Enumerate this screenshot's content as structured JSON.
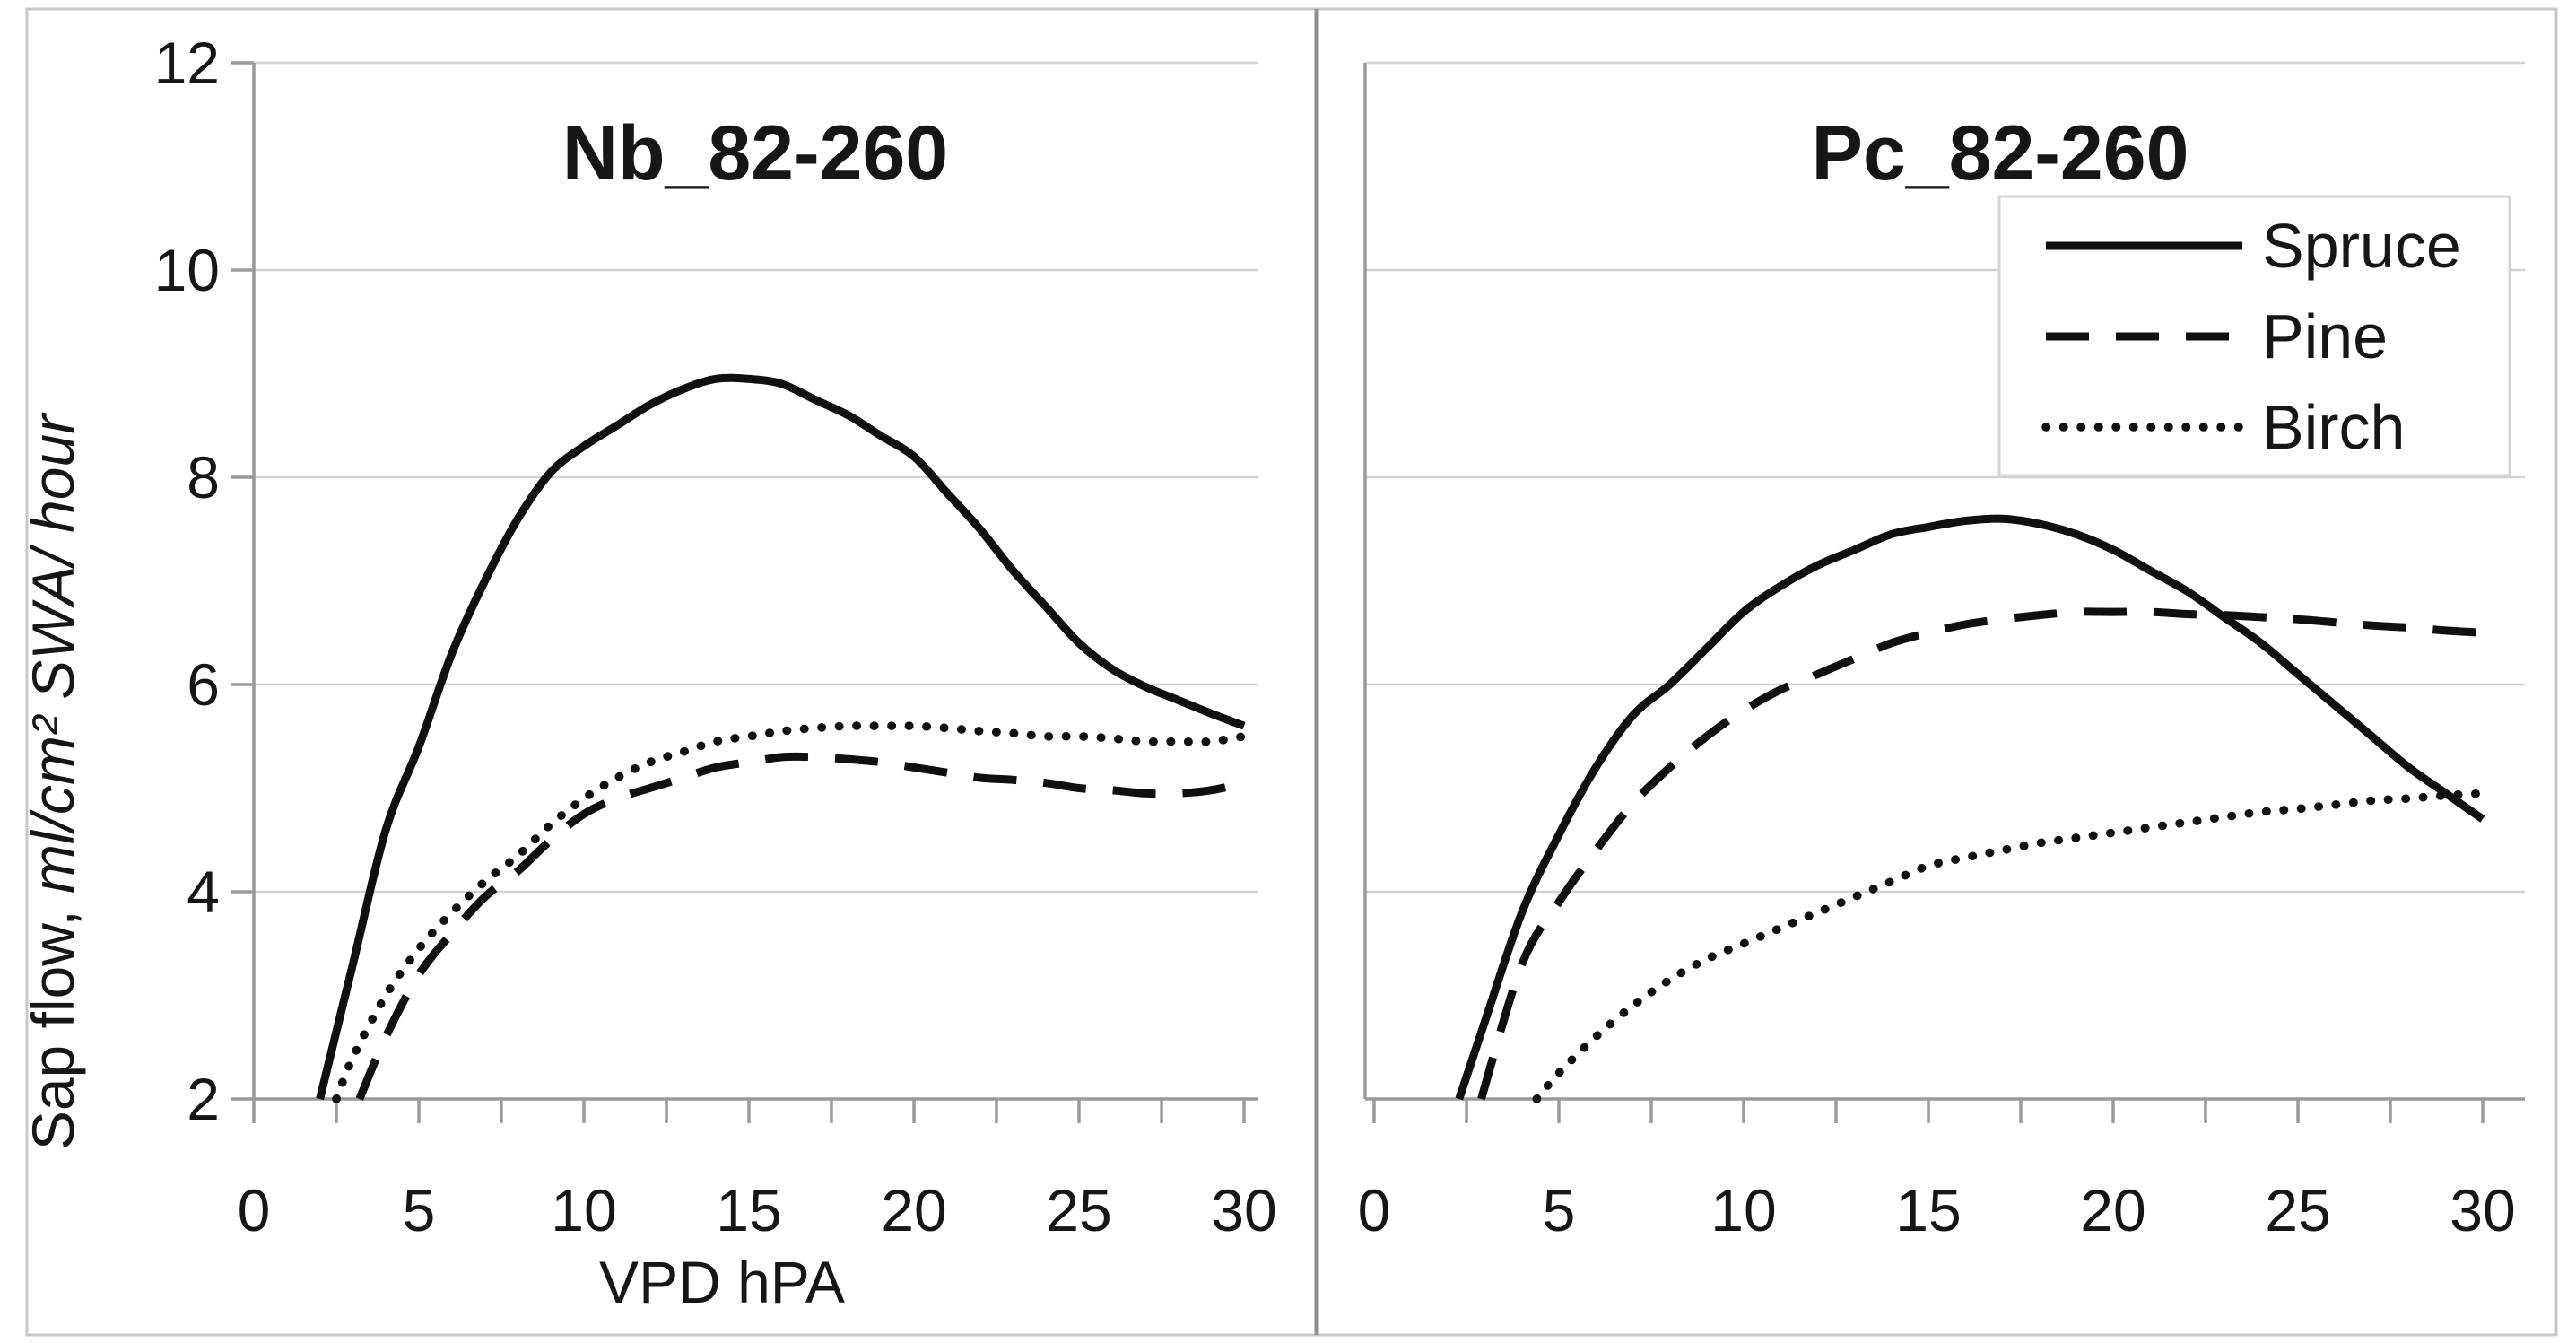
{
  "figure": {
    "border_note": "two-panel line chart figure with outer gray border and center divider"
  },
  "axes": {
    "x_title": "VPD hPA",
    "y_title_normal": "Sap flow, ",
    "y_title_italic": "ml/cm² SWA/ hour"
  },
  "colors": {
    "curve": "#101010",
    "grid": "#d2d2d2",
    "axis": "#9a9a9a",
    "divider": "#8f8f8f",
    "outer_border": "#c8c8c8",
    "legend_border": "#d4d4d4",
    "text": "#161616",
    "background": "#ffffff"
  },
  "chart_data": [
    {
      "type": "line",
      "title": "Nb_82-260",
      "xlabel": "VPD hPA",
      "ylabel": "Sap flow, ml/cm² SWA/ hour",
      "xlim": [
        0,
        30
      ],
      "ylim": [
        2,
        12
      ],
      "xticks": [
        0,
        5,
        10,
        15,
        20,
        25,
        30
      ],
      "xtick_minor_step": 2.5,
      "yticks": [
        12,
        10,
        8,
        6,
        4,
        2
      ],
      "ytick_labels": true,
      "grid": true,
      "series": [
        {
          "name": "Spruce",
          "style": "solid",
          "x": [
            2,
            3,
            4,
            5,
            6,
            7,
            8,
            9,
            10,
            11,
            12,
            13,
            14,
            15,
            16,
            17,
            18,
            19,
            20,
            21,
            22,
            23,
            24,
            25,
            26,
            27,
            28,
            29,
            30
          ],
          "y": [
            2.0,
            3.3,
            4.6,
            5.4,
            6.3,
            7.0,
            7.6,
            8.05,
            8.3,
            8.5,
            8.7,
            8.85,
            8.95,
            8.95,
            8.9,
            8.75,
            8.6,
            8.4,
            8.2,
            7.85,
            7.5,
            7.1,
            6.75,
            6.4,
            6.15,
            5.98,
            5.85,
            5.72,
            5.6
          ]
        },
        {
          "name": "Pine",
          "style": "dashed",
          "x": [
            3.2,
            4,
            5,
            6,
            7,
            8,
            9,
            10,
            11,
            12,
            13,
            14,
            15,
            16,
            17,
            18,
            19,
            20,
            21,
            22,
            23,
            24,
            25,
            26,
            27,
            28,
            29,
            30
          ],
          "y": [
            2.0,
            2.6,
            3.2,
            3.6,
            3.95,
            4.2,
            4.5,
            4.75,
            4.9,
            5.0,
            5.1,
            5.2,
            5.25,
            5.3,
            5.3,
            5.28,
            5.25,
            5.2,
            5.15,
            5.1,
            5.08,
            5.05,
            5.0,
            4.98,
            4.95,
            4.95,
            4.98,
            5.05
          ]
        },
        {
          "name": "Birch",
          "style": "dotted",
          "x": [
            2.5,
            3,
            4,
            5,
            6,
            7,
            8,
            9,
            10,
            11,
            12,
            13,
            14,
            15,
            16,
            17,
            18,
            19,
            20,
            21,
            22,
            23,
            24,
            25,
            26,
            27,
            28,
            29,
            30
          ],
          "y": [
            2.0,
            2.4,
            3.0,
            3.45,
            3.8,
            4.1,
            4.35,
            4.65,
            4.9,
            5.1,
            5.25,
            5.35,
            5.45,
            5.5,
            5.55,
            5.58,
            5.6,
            5.6,
            5.6,
            5.58,
            5.55,
            5.53,
            5.5,
            5.5,
            5.48,
            5.45,
            5.45,
            5.45,
            5.5
          ]
        }
      ]
    },
    {
      "type": "line",
      "title": "Pc_82-260",
      "xlabel": "",
      "ylabel": "",
      "xlim": [
        0,
        30
      ],
      "ylim": [
        2,
        12
      ],
      "xticks": [
        0,
        5,
        10,
        15,
        20,
        25,
        30
      ],
      "xtick_minor_step": 2.5,
      "yticks": [
        12,
        10,
        8,
        6,
        4,
        2
      ],
      "ytick_labels": false,
      "grid": true,
      "legend": {
        "position": "upper-right",
        "entries": [
          {
            "label": "Spruce",
            "style": "solid"
          },
          {
            "label": "Pine",
            "style": "dashed"
          },
          {
            "label": "Birch",
            "style": "dotted"
          }
        ]
      },
      "series": [
        {
          "name": "Spruce",
          "style": "solid",
          "x": [
            2.3,
            3,
            4,
            5,
            6,
            7,
            8,
            9,
            10,
            11,
            12,
            13,
            14,
            15,
            16,
            17,
            18,
            19,
            20,
            21,
            22,
            23,
            24,
            25,
            26,
            27,
            28,
            29,
            30
          ],
          "y": [
            2.0,
            2.75,
            3.8,
            4.55,
            5.2,
            5.7,
            6.0,
            6.35,
            6.7,
            6.95,
            7.15,
            7.3,
            7.45,
            7.52,
            7.58,
            7.6,
            7.55,
            7.45,
            7.3,
            7.1,
            6.9,
            6.65,
            6.4,
            6.1,
            5.8,
            5.5,
            5.2,
            4.95,
            4.7
          ]
        },
        {
          "name": "Pine",
          "style": "dashed",
          "x": [
            2.9,
            4,
            5,
            6,
            7,
            8,
            9,
            10,
            11,
            12,
            13,
            14,
            15,
            16,
            17,
            18,
            19,
            20,
            21,
            22,
            23,
            24,
            25,
            26,
            27,
            28,
            29,
            30
          ],
          "y": [
            2.0,
            3.3,
            3.9,
            4.4,
            4.85,
            5.2,
            5.5,
            5.75,
            5.95,
            6.1,
            6.25,
            6.4,
            6.5,
            6.58,
            6.63,
            6.67,
            6.7,
            6.7,
            6.7,
            6.68,
            6.67,
            6.65,
            6.63,
            6.6,
            6.57,
            6.55,
            6.52,
            6.5
          ]
        },
        {
          "name": "Birch",
          "style": "dotted",
          "x": [
            4.4,
            5,
            6,
            7,
            8,
            9,
            10,
            11,
            12,
            13,
            14,
            15,
            16,
            17,
            18,
            19,
            20,
            21,
            22,
            23,
            24,
            25,
            26,
            27,
            28,
            29,
            30
          ],
          "y": [
            2.0,
            2.25,
            2.6,
            2.9,
            3.15,
            3.35,
            3.5,
            3.65,
            3.8,
            3.95,
            4.1,
            4.25,
            4.33,
            4.4,
            4.47,
            4.52,
            4.57,
            4.62,
            4.67,
            4.72,
            4.77,
            4.8,
            4.84,
            4.88,
            4.9,
            4.93,
            4.95
          ]
        }
      ]
    }
  ]
}
